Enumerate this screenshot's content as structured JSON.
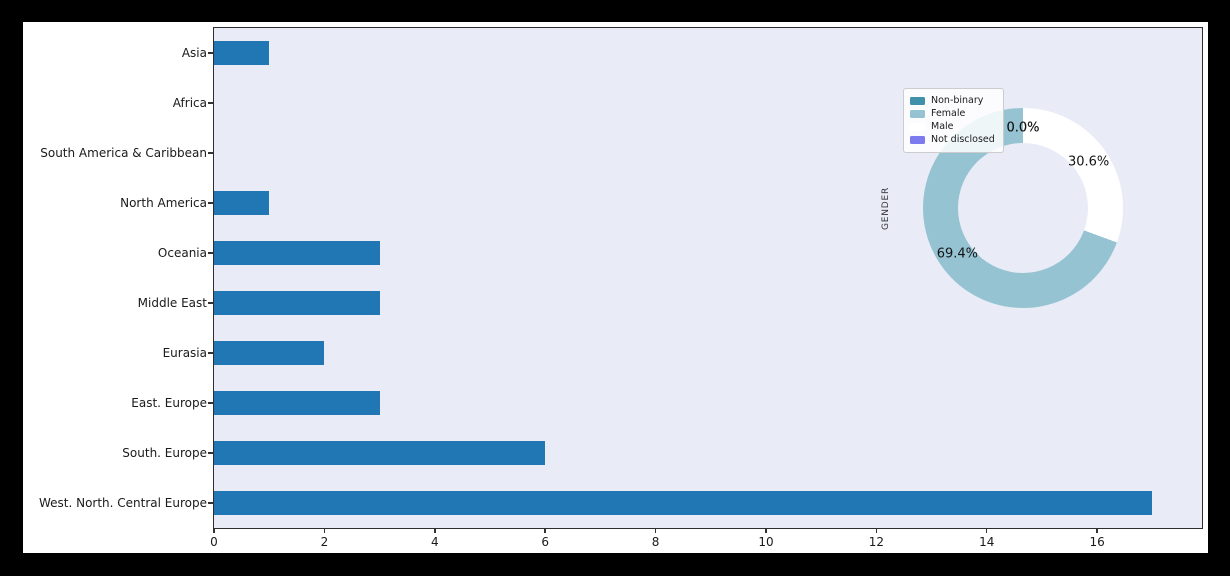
{
  "canvas": {
    "bg": "#000000",
    "figure_bg": "#ffffff",
    "plot_bg": "#e9ecf7"
  },
  "chart_data": [
    {
      "type": "bar",
      "orientation": "horizontal",
      "title": "",
      "xlabel": "",
      "ylabel": "",
      "categories_top_to_bottom": [
        "Asia",
        "Africa",
        "South America & Caribbean",
        "North America",
        "Oceania",
        "Middle East",
        "Eurasia",
        "East. Europe",
        "South. Europe",
        "West. North. Central Europe"
      ],
      "values": [
        1,
        0,
        0,
        1,
        3,
        3,
        2,
        3,
        6,
        17
      ],
      "bar_color": "#2077b4",
      "xlim": [
        0,
        17.9
      ],
      "x_ticks": [
        0,
        2,
        4,
        6,
        8,
        10,
        12,
        14,
        16
      ],
      "grid": false
    },
    {
      "type": "pie",
      "subtype": "donut",
      "ylabel": "GENDER",
      "start_angle_deg": 90,
      "direction": "counterclockwise",
      "legend_position": "upper-left",
      "slices": [
        {
          "label": "Non-binary",
          "pct": 0.0,
          "pct_label": "0.0%",
          "color": "#3f90a8"
        },
        {
          "label": "Female",
          "pct": 69.4,
          "pct_label": "69.4%",
          "color": "#96c3d2"
        },
        {
          "label": "Male",
          "pct": 30.6,
          "pct_label": "30.6%",
          "color": "#ffffff"
        },
        {
          "label": "Not disclosed",
          "pct": 0.0,
          "pct_label": "0.0%",
          "color": "#7c7aee"
        }
      ]
    }
  ]
}
